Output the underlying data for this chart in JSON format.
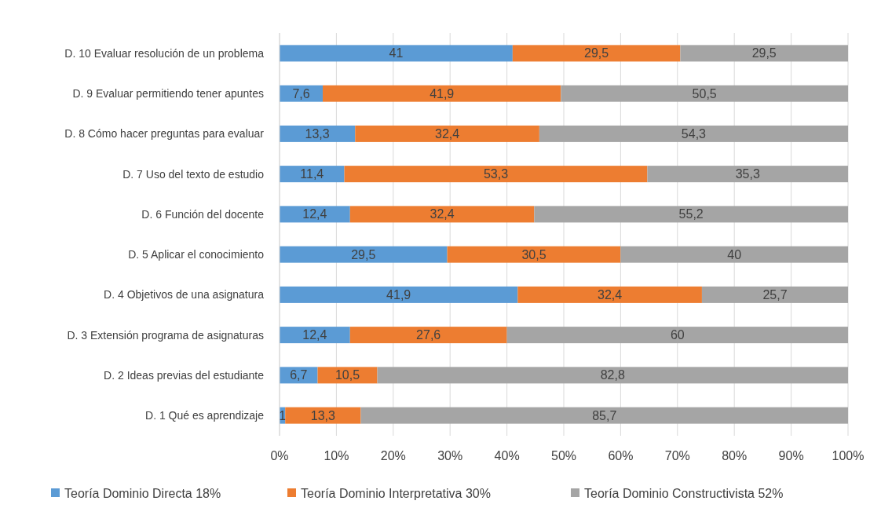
{
  "chart_data": {
    "type": "bar",
    "orientation": "horizontal",
    "stacked": true,
    "categories": [
      "D. 10 Evaluar resolución de un problema",
      "D. 9 Evaluar permitiendo tener apuntes",
      "D. 8 Cómo hacer preguntas para evaluar",
      "D. 7 Uso del texto de estudio",
      "D. 6 Función del docente",
      "D. 5 Aplicar el conocimiento",
      "D. 4 Objetivos de una asignatura",
      "D. 3 Extensión programa de asignaturas",
      "D. 2 Ideas previas del estudiante",
      "D. 1 Qué es aprendizaje"
    ],
    "series": [
      {
        "name": "Teoría Dominio Directa 18%",
        "color": "#5b9bd5",
        "values": [
          41,
          7.6,
          13.3,
          11.4,
          12.4,
          29.5,
          41.9,
          12.4,
          6.7,
          1
        ],
        "value_labels": [
          "41",
          "7,6",
          "13,3",
          "11,4",
          "12,4",
          "29,5",
          "41,9",
          "12,4",
          "6,7",
          "1"
        ]
      },
      {
        "name": "Teoría Dominio Interpretativa 30%",
        "color": "#ed7d31",
        "values": [
          29.5,
          41.9,
          32.4,
          53.3,
          32.4,
          30.5,
          32.4,
          27.6,
          10.5,
          13.3
        ],
        "value_labels": [
          "29,5",
          "41,9",
          "32,4",
          "53,3",
          "32,4",
          "30,5",
          "32,4",
          "27,6",
          "10,5",
          "13,3"
        ]
      },
      {
        "name": "Teoría Dominio Constructivista 52%",
        "color": "#a5a5a5",
        "values": [
          29.5,
          50.5,
          54.3,
          35.3,
          55.2,
          40,
          25.7,
          60,
          82.8,
          85.7
        ],
        "value_labels": [
          "29,5",
          "50,5",
          "54,3",
          "35,3",
          "55,2",
          "40",
          "25,7",
          "60",
          "82,8",
          "85,7"
        ]
      }
    ],
    "xlim": [
      0,
      100
    ],
    "xticks": [
      {
        "value": 0,
        "label": "0%"
      },
      {
        "value": 10,
        "label": "10%"
      },
      {
        "value": 20,
        "label": "20%"
      },
      {
        "value": 30,
        "label": "30%"
      },
      {
        "value": 40,
        "label": "40%"
      },
      {
        "value": 50,
        "label": "50%"
      },
      {
        "value": 60,
        "label": "60%"
      },
      {
        "value": 70,
        "label": "70%"
      },
      {
        "value": 80,
        "label": "80%"
      },
      {
        "value": 90,
        "label": "90%"
      },
      {
        "value": 100,
        "label": "100%"
      }
    ],
    "grid": "x",
    "legend": "bottom"
  }
}
